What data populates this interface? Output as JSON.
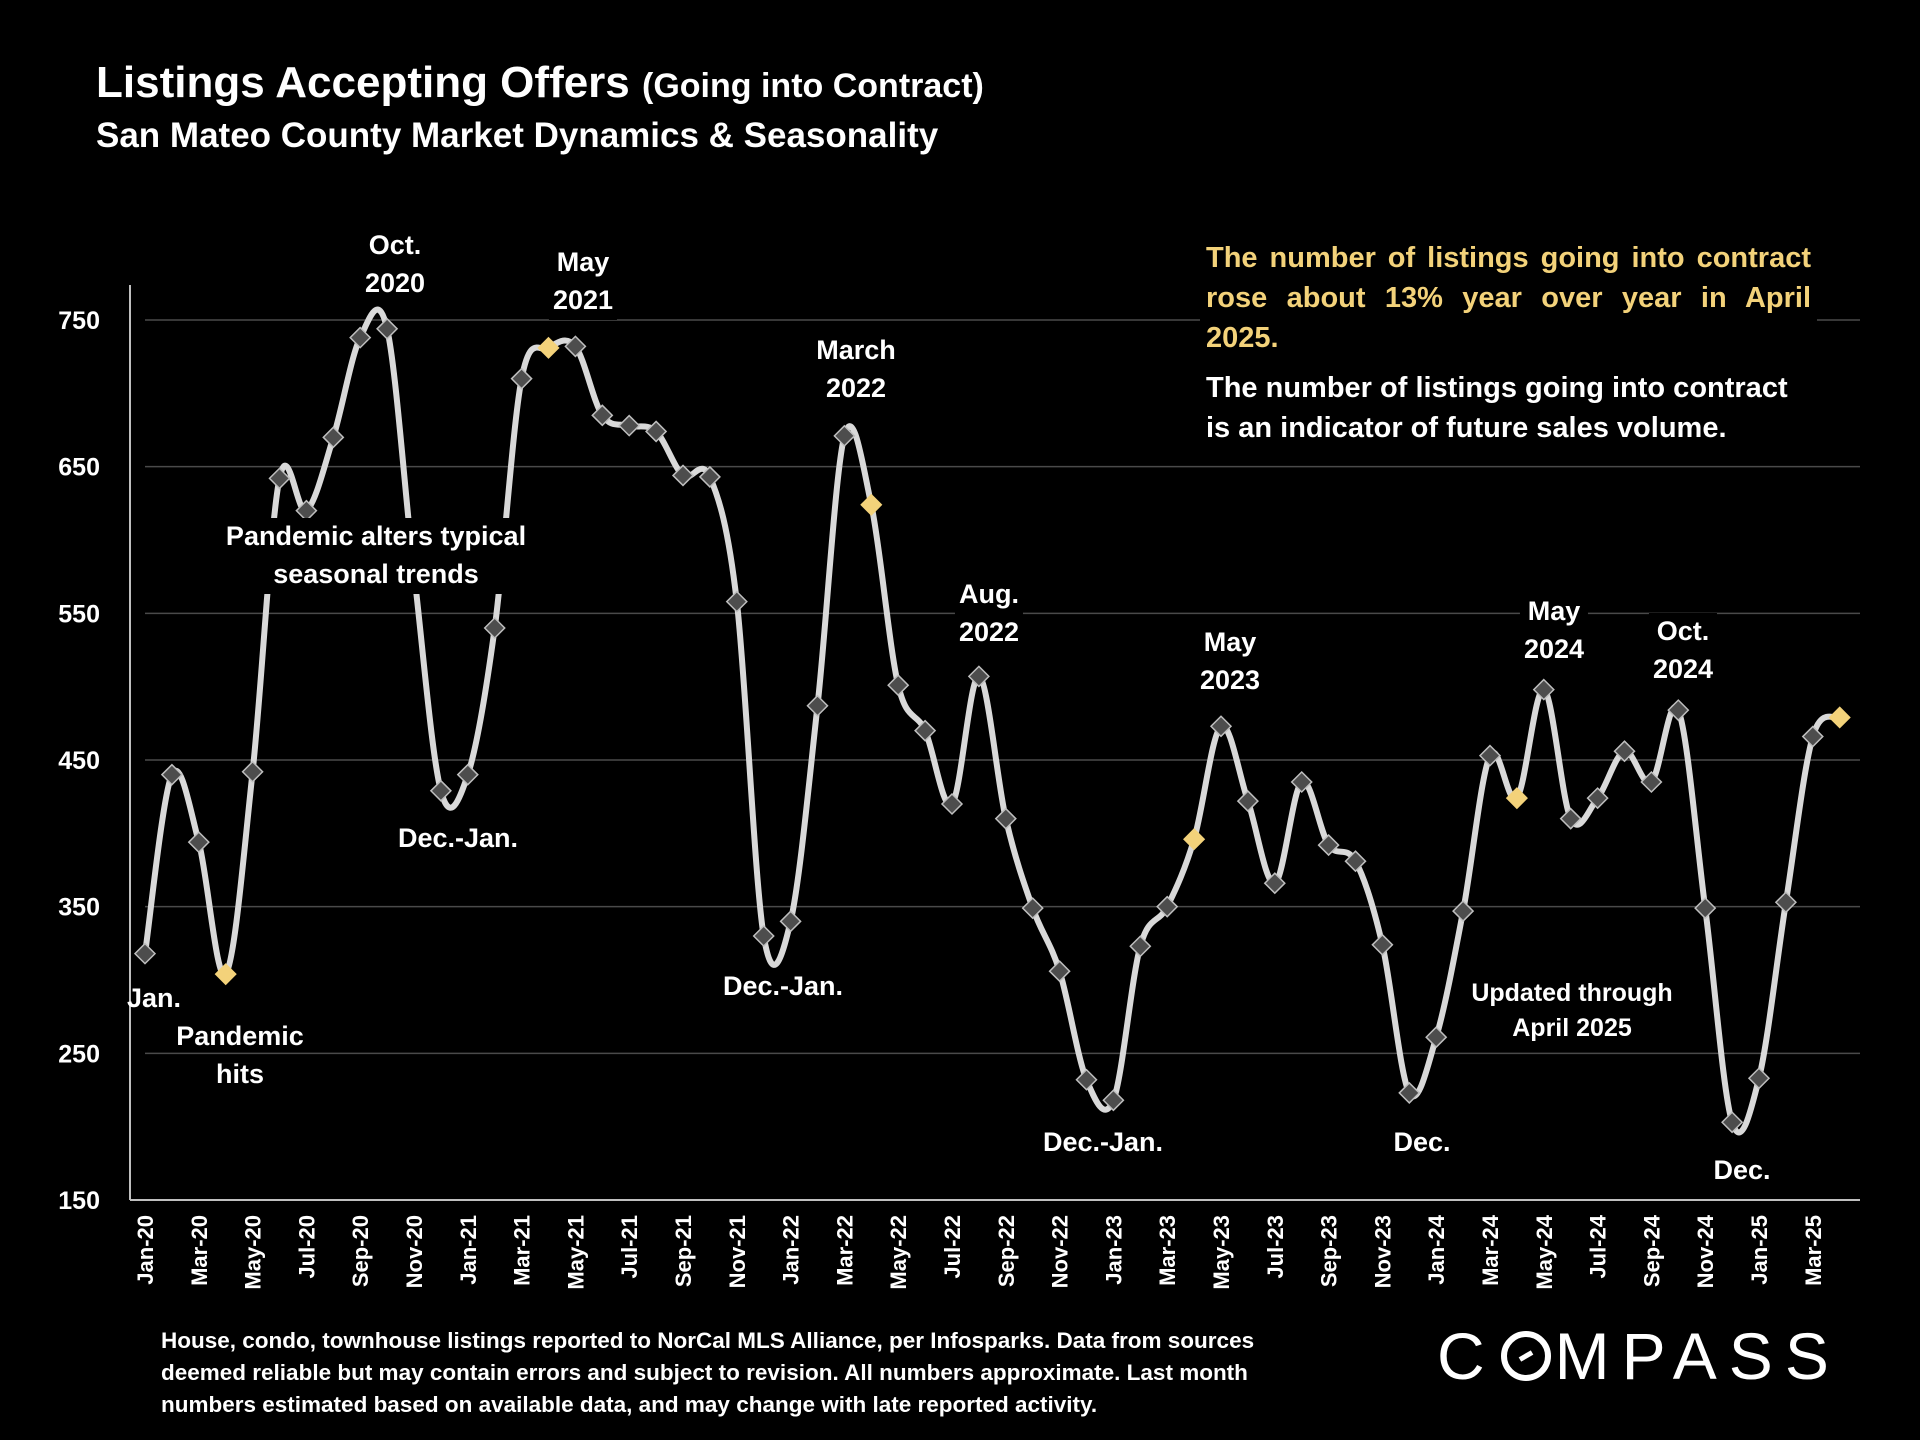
{
  "title": {
    "main": "Listings Accepting Offers",
    "paren": "(Going into Contract)"
  },
  "subtitle": "San Mateo County Market Dynamics & Seasonality",
  "callout": {
    "highlight": "The number of listings going into contract rose about 13% year over year in April 2025.",
    "text": "The number of listings going into contract is an indicator of future sales volume."
  },
  "annotations": [
    {
      "id": "jan",
      "text": "Jan."
    },
    {
      "id": "pandemic-hits",
      "text": "Pandemic\nhits"
    },
    {
      "id": "pandemic-alters",
      "text": "Pandemic alters typical\nseasonal trends"
    },
    {
      "id": "oct-2020",
      "text": "Oct.\n2020"
    },
    {
      "id": "may-2021",
      "text": "May\n2021"
    },
    {
      "id": "dec-jan-2021",
      "text": "Dec.-Jan."
    },
    {
      "id": "dec-jan-2022",
      "text": "Dec.-Jan."
    },
    {
      "id": "march-2022",
      "text": "March\n2022"
    },
    {
      "id": "aug-2022",
      "text": "Aug.\n2022"
    },
    {
      "id": "dec-jan-2023",
      "text": "Dec.-Jan."
    },
    {
      "id": "may-2023",
      "text": "May\n2023"
    },
    {
      "id": "dec-2023",
      "text": "Dec."
    },
    {
      "id": "may-2024",
      "text": "May\n2024"
    },
    {
      "id": "oct-2024",
      "text": "Oct.\n2024"
    },
    {
      "id": "updated",
      "text": "Updated through\nApril 2025"
    },
    {
      "id": "dec-2024",
      "text": "Dec."
    }
  ],
  "footnote": "House, condo, townhouse listings reported to NorCal MLS Alliance, per Infosparks. Data from sources deemed reliable but may contain errors and subject to revision. All numbers approximate. Last month numbers estimated based on available data, and may change with late reported activity.",
  "logo": {
    "pre": "C",
    "post": "MPASS"
  },
  "colors": {
    "line": "#d9d9d9",
    "marker": "#4d4d4d",
    "highlight": "#f3d27a",
    "grid": "#4a4a4a",
    "axis": "#bfbfbf"
  },
  "chart_data": {
    "type": "line",
    "ylim": [
      150,
      780
    ],
    "yticks": [
      150,
      250,
      350,
      450,
      550,
      650,
      750
    ],
    "grid": true,
    "x": [
      "Jan-20",
      "Feb-20",
      "Mar-20",
      "Apr-20",
      "May-20",
      "Jun-20",
      "Jul-20",
      "Aug-20",
      "Sep-20",
      "Oct-20",
      "Nov-20",
      "Dec-20",
      "Jan-21",
      "Feb-21",
      "Mar-21",
      "Apr-21",
      "May-21",
      "Jun-21",
      "Jul-21",
      "Aug-21",
      "Sep-21",
      "Oct-21",
      "Nov-21",
      "Dec-21",
      "Jan-22",
      "Feb-22",
      "Mar-22",
      "Apr-22",
      "May-22",
      "Jun-22",
      "Jul-22",
      "Aug-22",
      "Sep-22",
      "Oct-22",
      "Nov-22",
      "Dec-22",
      "Jan-23",
      "Feb-23",
      "Mar-23",
      "Apr-23",
      "May-23",
      "Jun-23",
      "Jul-23",
      "Aug-23",
      "Sep-23",
      "Oct-23",
      "Nov-23",
      "Dec-23",
      "Jan-24",
      "Feb-24",
      "Mar-24",
      "Apr-24",
      "May-24",
      "Jun-24",
      "Jul-24",
      "Aug-24",
      "Sep-24",
      "Oct-24",
      "Nov-24",
      "Dec-24",
      "Jan-25",
      "Feb-25",
      "Mar-25",
      "Apr-25"
    ],
    "xtick_labels": [
      "Jan-20",
      "Mar-20",
      "May-20",
      "Jul-20",
      "Sep-20",
      "Nov-20",
      "Jan-21",
      "Mar-21",
      "May-21",
      "Jul-21",
      "Sep-21",
      "Nov-21",
      "Jan-22",
      "Mar-22",
      "May-22",
      "Jul-22",
      "Sep-22",
      "Nov-22",
      "Jan-23",
      "Mar-23",
      "May-23",
      "Jul-23",
      "Sep-23",
      "Nov-23",
      "Jan-24",
      "Mar-24",
      "May-24",
      "Jul-24",
      "Sep-24",
      "Nov-24",
      "Jan-25",
      "Mar-25"
    ],
    "values": [
      318,
      440,
      394,
      304,
      442,
      642,
      620,
      670,
      738,
      744,
      578,
      429,
      440,
      540,
      710,
      731,
      732,
      685,
      678,
      674,
      644,
      643,
      558,
      330,
      340,
      487,
      671,
      624,
      501,
      470,
      420,
      507,
      410,
      349,
      306,
      232,
      218,
      323,
      350,
      396,
      473,
      422,
      366,
      435,
      392,
      381,
      324,
      223,
      261,
      347,
      453,
      424,
      498,
      410,
      424,
      456,
      435,
      484,
      349,
      203,
      233,
      353,
      466,
      479
    ],
    "highlight_points": [
      "Apr-20",
      "Apr-21",
      "Apr-22",
      "Apr-23",
      "Apr-24",
      "Apr-25"
    ]
  }
}
